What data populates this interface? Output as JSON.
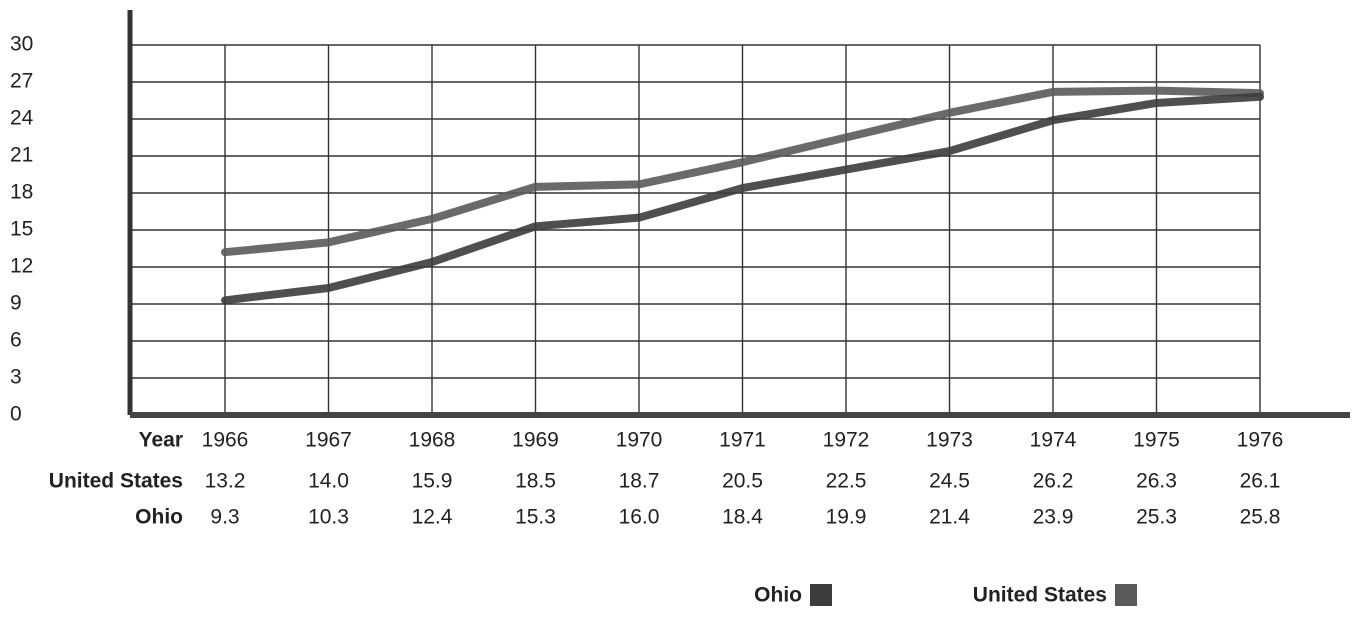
{
  "chart_data": {
    "type": "line",
    "xlabel": "Year",
    "x": [
      1966,
      1967,
      1968,
      1969,
      1970,
      1971,
      1972,
      1973,
      1974,
      1975,
      1976
    ],
    "xlim": [
      1966,
      1976
    ],
    "series": [
      {
        "name": "United States",
        "color": "#5a5a5a",
        "values": [
          13.2,
          14.0,
          15.9,
          18.5,
          18.7,
          20.5,
          22.5,
          24.5,
          26.2,
          26.3,
          26.1
        ],
        "value_labels": [
          "13.2",
          "14.0",
          "15.9",
          "18.5",
          "18.7",
          "20.5",
          "22.5",
          "24.5",
          "26.2",
          "26.3",
          "26.1"
        ]
      },
      {
        "name": "Ohio",
        "color": "#3c3c3c",
        "values": [
          9.3,
          10.3,
          12.4,
          15.3,
          16.0,
          18.4,
          19.9,
          21.4,
          23.9,
          25.3,
          25.8
        ],
        "value_labels": [
          "9.3",
          "10.3",
          "12.4",
          "15.3",
          "16.0",
          "18.4",
          "19.9",
          "21.4",
          "23.9",
          "25.3",
          "25.8"
        ]
      }
    ],
    "ylim": [
      0,
      30
    ],
    "yticks": [
      0,
      3,
      6,
      9,
      12,
      15,
      18,
      21,
      24,
      27,
      30
    ],
    "grid": true,
    "legend_order": [
      1,
      0
    ]
  }
}
